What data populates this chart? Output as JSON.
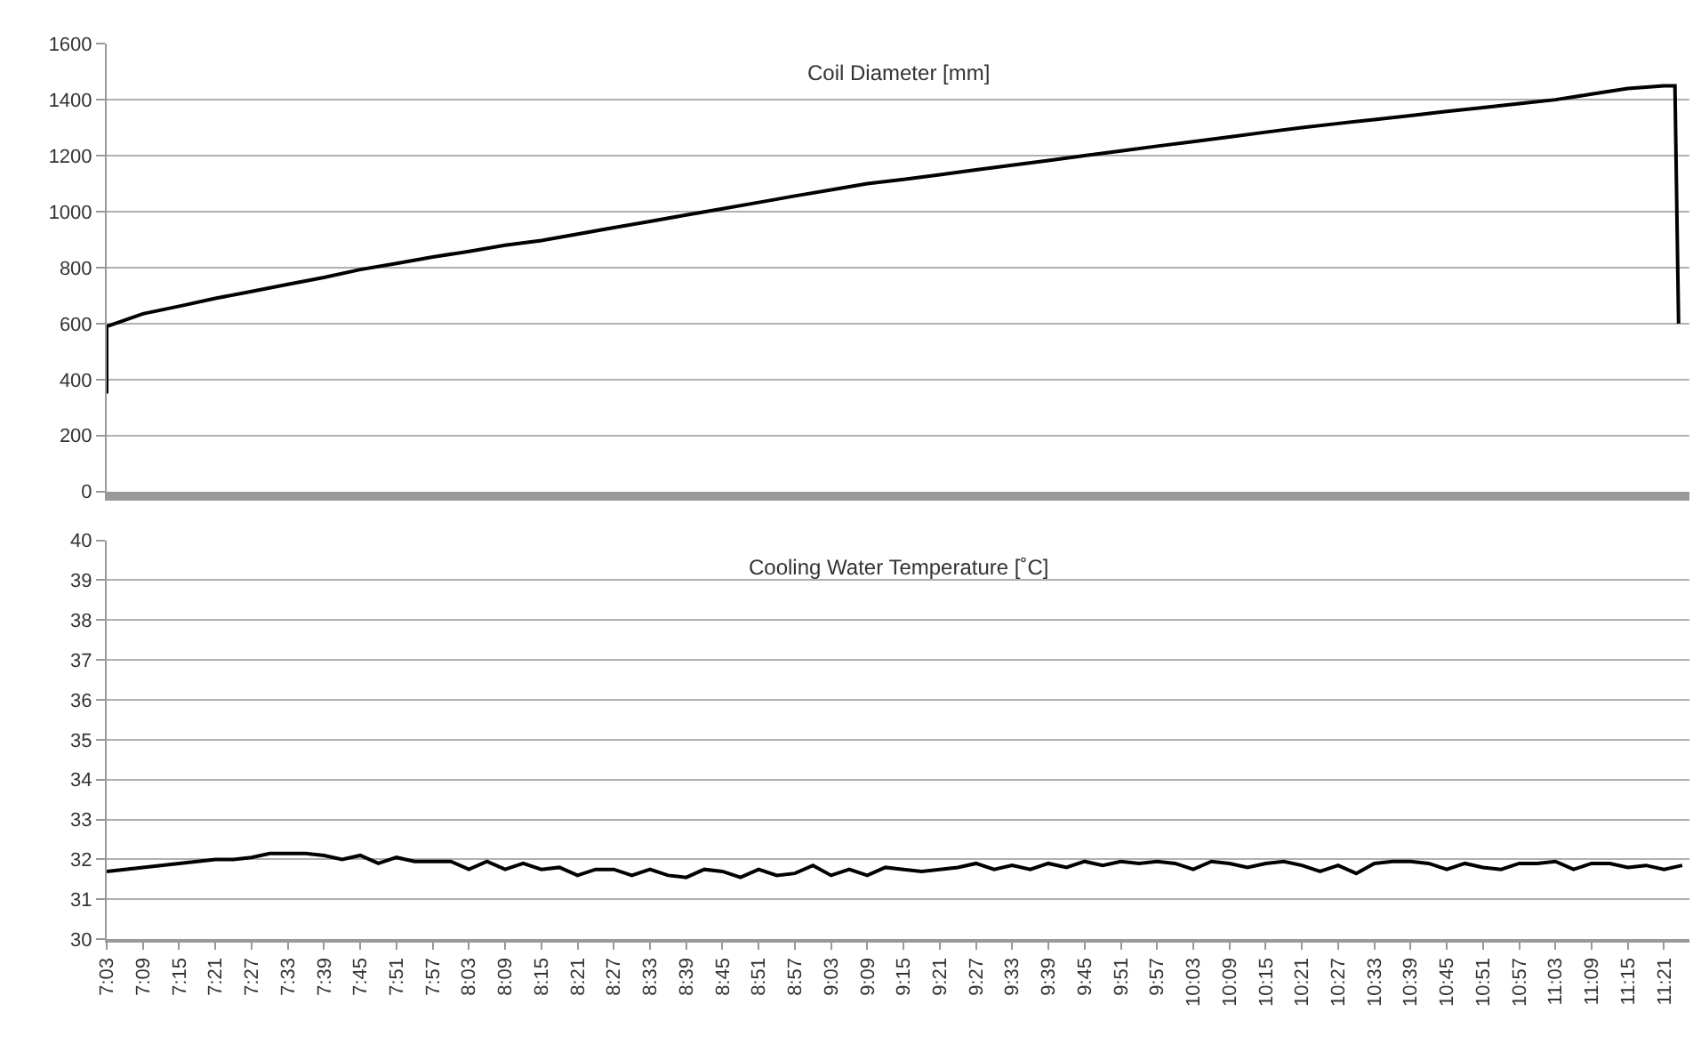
{
  "chart_data": [
    {
      "type": "line",
      "title": "Coil Diameter [mm]",
      "color": "#000000",
      "grid": "y",
      "tick_labels": "y",
      "xlim": [
        7.05,
        11.42
      ],
      "ylim": [
        0,
        1600
      ],
      "yticks": [
        0,
        200,
        400,
        600,
        800,
        1000,
        1200,
        1400,
        1600
      ],
      "x": [
        7.05,
        7.05,
        7.15,
        7.25,
        7.35,
        7.45,
        7.55,
        7.65,
        7.75,
        7.85,
        7.95,
        8.05,
        8.15,
        8.25,
        8.35,
        8.45,
        8.55,
        8.65,
        8.75,
        8.85,
        8.95,
        9.05,
        9.15,
        9.25,
        9.35,
        9.45,
        9.55,
        9.65,
        9.75,
        9.85,
        9.95,
        10.05,
        10.15,
        10.25,
        10.35,
        10.45,
        10.55,
        10.65,
        10.75,
        10.85,
        10.95,
        11.05,
        11.15,
        11.25,
        11.35,
        11.38,
        11.39
      ],
      "values": [
        350,
        590,
        635,
        662,
        690,
        715,
        740,
        765,
        793,
        815,
        838,
        858,
        880,
        897,
        920,
        943,
        965,
        988,
        1010,
        1033,
        1056,
        1078,
        1100,
        1115,
        1132,
        1149,
        1166,
        1183,
        1200,
        1217,
        1234,
        1250,
        1267,
        1284,
        1300,
        1315,
        1329,
        1343,
        1358,
        1372,
        1386,
        1400,
        1420,
        1440,
        1450,
        1450,
        600
      ]
    },
    {
      "type": "line",
      "title": "Cooling Water Temperature [˚C]",
      "color": "#000000",
      "grid": "y",
      "xlim": [
        7.05,
        11.42
      ],
      "ylim": [
        30,
        40
      ],
      "yticks": [
        30,
        31,
        32,
        33,
        34,
        35,
        36,
        37,
        38,
        39,
        40
      ],
      "xticks": [
        {
          "value": 7.05,
          "label": "7:03"
        },
        {
          "value": 7.15,
          "label": "7:09"
        },
        {
          "value": 7.25,
          "label": "7:15"
        },
        {
          "value": 7.35,
          "label": "7:21"
        },
        {
          "value": 7.45,
          "label": "7:27"
        },
        {
          "value": 7.55,
          "label": "7:33"
        },
        {
          "value": 7.65,
          "label": "7:39"
        },
        {
          "value": 7.75,
          "label": "7:45"
        },
        {
          "value": 7.85,
          "label": "7:51"
        },
        {
          "value": 7.95,
          "label": "7:57"
        },
        {
          "value": 8.05,
          "label": "8:03"
        },
        {
          "value": 8.15,
          "label": "8:09"
        },
        {
          "value": 8.25,
          "label": "8:15"
        },
        {
          "value": 8.35,
          "label": "8:21"
        },
        {
          "value": 8.45,
          "label": "8:27"
        },
        {
          "value": 8.55,
          "label": "8:33"
        },
        {
          "value": 8.65,
          "label": "8:39"
        },
        {
          "value": 8.75,
          "label": "8:45"
        },
        {
          "value": 8.85,
          "label": "8:51"
        },
        {
          "value": 8.95,
          "label": "8:57"
        },
        {
          "value": 9.05,
          "label": "9:03"
        },
        {
          "value": 9.15,
          "label": "9:09"
        },
        {
          "value": 9.25,
          "label": "9:15"
        },
        {
          "value": 9.35,
          "label": "9:21"
        },
        {
          "value": 9.45,
          "label": "9:27"
        },
        {
          "value": 9.55,
          "label": "9:33"
        },
        {
          "value": 9.65,
          "label": "9:39"
        },
        {
          "value": 9.75,
          "label": "9:45"
        },
        {
          "value": 9.85,
          "label": "9:51"
        },
        {
          "value": 9.95,
          "label": "9:57"
        },
        {
          "value": 10.05,
          "label": "10:03"
        },
        {
          "value": 10.15,
          "label": "10:09"
        },
        {
          "value": 10.25,
          "label": "10:15"
        },
        {
          "value": 10.35,
          "label": "10:21"
        },
        {
          "value": 10.45,
          "label": "10:27"
        },
        {
          "value": 10.55,
          "label": "10:33"
        },
        {
          "value": 10.65,
          "label": "10:39"
        },
        {
          "value": 10.75,
          "label": "10:45"
        },
        {
          "value": 10.85,
          "label": "10:51"
        },
        {
          "value": 10.95,
          "label": "10:57"
        },
        {
          "value": 11.05,
          "label": "11:03"
        },
        {
          "value": 11.15,
          "label": "11:09"
        },
        {
          "value": 11.25,
          "label": "11:15"
        },
        {
          "value": 11.35,
          "label": "11:21"
        }
      ],
      "x": [
        7.05,
        7.1,
        7.15,
        7.2,
        7.25,
        7.3,
        7.35,
        7.4,
        7.45,
        7.5,
        7.55,
        7.6,
        7.65,
        7.7,
        7.75,
        7.8,
        7.85,
        7.9,
        7.95,
        8.0,
        8.05,
        8.1,
        8.15,
        8.2,
        8.25,
        8.3,
        8.35,
        8.4,
        8.45,
        8.5,
        8.55,
        8.6,
        8.65,
        8.7,
        8.75,
        8.8,
        8.85,
        8.9,
        8.95,
        9.0,
        9.05,
        9.1,
        9.15,
        9.2,
        9.25,
        9.3,
        9.35,
        9.4,
        9.45,
        9.5,
        9.55,
        9.6,
        9.65,
        9.7,
        9.75,
        9.8,
        9.85,
        9.9,
        9.95,
        10.0,
        10.05,
        10.1,
        10.15,
        10.2,
        10.25,
        10.3,
        10.35,
        10.4,
        10.45,
        10.5,
        10.55,
        10.6,
        10.65,
        10.7,
        10.75,
        10.8,
        10.85,
        10.9,
        10.95,
        11.0,
        11.05,
        11.1,
        11.15,
        11.2,
        11.25,
        11.3,
        11.35,
        11.4
      ],
      "values": [
        31.7,
        31.75,
        31.8,
        31.85,
        31.9,
        31.95,
        32.0,
        32.0,
        32.05,
        32.15,
        32.15,
        32.15,
        32.1,
        32.0,
        32.1,
        31.9,
        32.05,
        31.95,
        31.95,
        31.95,
        31.75,
        31.95,
        31.75,
        31.9,
        31.75,
        31.8,
        31.6,
        31.75,
        31.75,
        31.6,
        31.75,
        31.6,
        31.55,
        31.75,
        31.7,
        31.55,
        31.75,
        31.6,
        31.65,
        31.85,
        31.6,
        31.75,
        31.6,
        31.8,
        31.75,
        31.7,
        31.75,
        31.8,
        31.9,
        31.75,
        31.85,
        31.75,
        31.9,
        31.8,
        31.95,
        31.85,
        31.95,
        31.9,
        31.95,
        31.9,
        31.75,
        31.95,
        31.9,
        31.8,
        31.9,
        31.95,
        31.85,
        31.7,
        31.85,
        31.65,
        31.9,
        31.95,
        31.95,
        31.9,
        31.75,
        31.9,
        31.8,
        31.75,
        31.9,
        31.9,
        31.95,
        31.75,
        31.9,
        31.9,
        31.8,
        31.85,
        31.75,
        31.85
      ]
    }
  ]
}
